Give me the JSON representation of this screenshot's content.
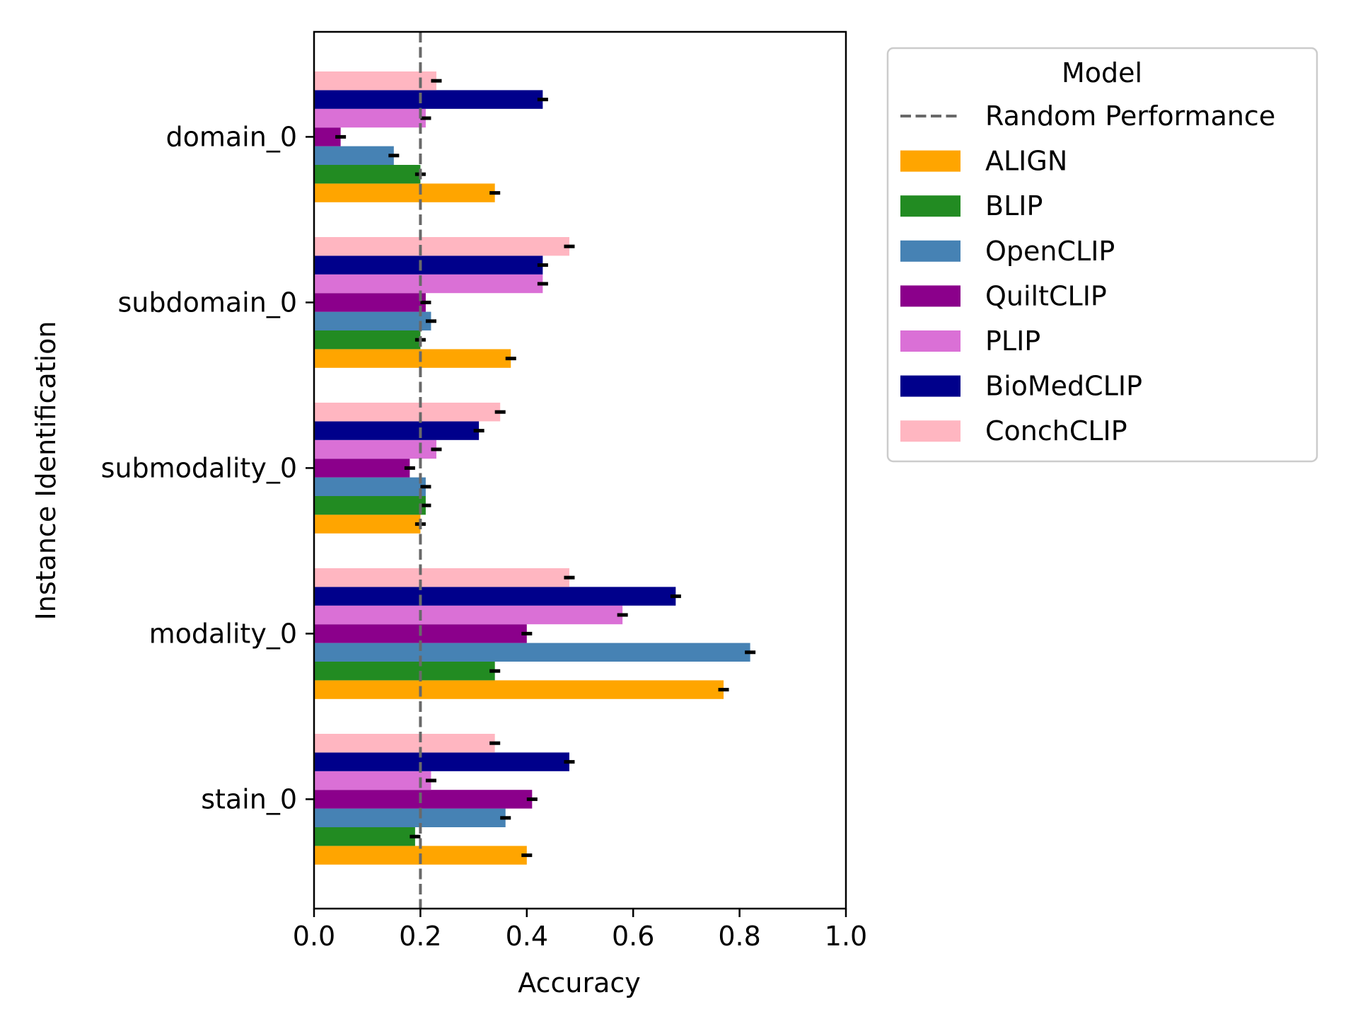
{
  "chart_data": {
    "type": "bar",
    "orientation": "horizontal",
    "xlabel": "Accuracy",
    "ylabel": "Instance Identification",
    "xlim": [
      0.0,
      1.0
    ],
    "xticks": [
      "0.0",
      "0.2",
      "0.4",
      "0.6",
      "0.8",
      "1.0"
    ],
    "grid": false,
    "categories": [
      "domain_0",
      "subdomain_0",
      "submodality_0",
      "modality_0",
      "stain_0"
    ],
    "series": [
      {
        "name": "ALIGN",
        "color": "#FFA500",
        "values": [
          0.34,
          0.37,
          0.2,
          0.77,
          0.4
        ],
        "errors": [
          0.01,
          0.01,
          0.01,
          0.01,
          0.01
        ]
      },
      {
        "name": "BLIP",
        "color": "#228B22",
        "values": [
          0.2,
          0.2,
          0.21,
          0.34,
          0.19
        ],
        "errors": [
          0.01,
          0.01,
          0.01,
          0.01,
          0.01
        ]
      },
      {
        "name": "OpenCLIP",
        "color": "#4682B4",
        "values": [
          0.15,
          0.22,
          0.21,
          0.82,
          0.36
        ],
        "errors": [
          0.01,
          0.01,
          0.01,
          0.01,
          0.01
        ]
      },
      {
        "name": "QuiltCLIP",
        "color": "#8B008B",
        "values": [
          0.05,
          0.21,
          0.18,
          0.4,
          0.41
        ],
        "errors": [
          0.01,
          0.01,
          0.01,
          0.01,
          0.01
        ]
      },
      {
        "name": "PLIP",
        "color": "#DA70D6",
        "values": [
          0.21,
          0.43,
          0.23,
          0.58,
          0.22
        ],
        "errors": [
          0.01,
          0.01,
          0.01,
          0.01,
          0.01
        ]
      },
      {
        "name": "BioMedCLIP",
        "color": "#00008B",
        "values": [
          0.43,
          0.43,
          0.31,
          0.68,
          0.48
        ],
        "errors": [
          0.01,
          0.01,
          0.01,
          0.01,
          0.01
        ]
      },
      {
        "name": "ConchCLIP",
        "color": "#FFB6C1",
        "values": [
          0.23,
          0.48,
          0.35,
          0.48,
          0.34
        ],
        "errors": [
          0.01,
          0.01,
          0.01,
          0.01,
          0.01
        ]
      }
    ],
    "reference_line": {
      "name": "Random Performance",
      "value": 0.2,
      "style": "dashed",
      "color": "#696969"
    },
    "legend": {
      "title": "Model",
      "placement": "outside-right-top",
      "entries": [
        "Random Performance",
        "ALIGN",
        "BLIP",
        "OpenCLIP",
        "QuiltCLIP",
        "PLIP",
        "BioMedCLIP",
        "ConchCLIP"
      ]
    }
  }
}
